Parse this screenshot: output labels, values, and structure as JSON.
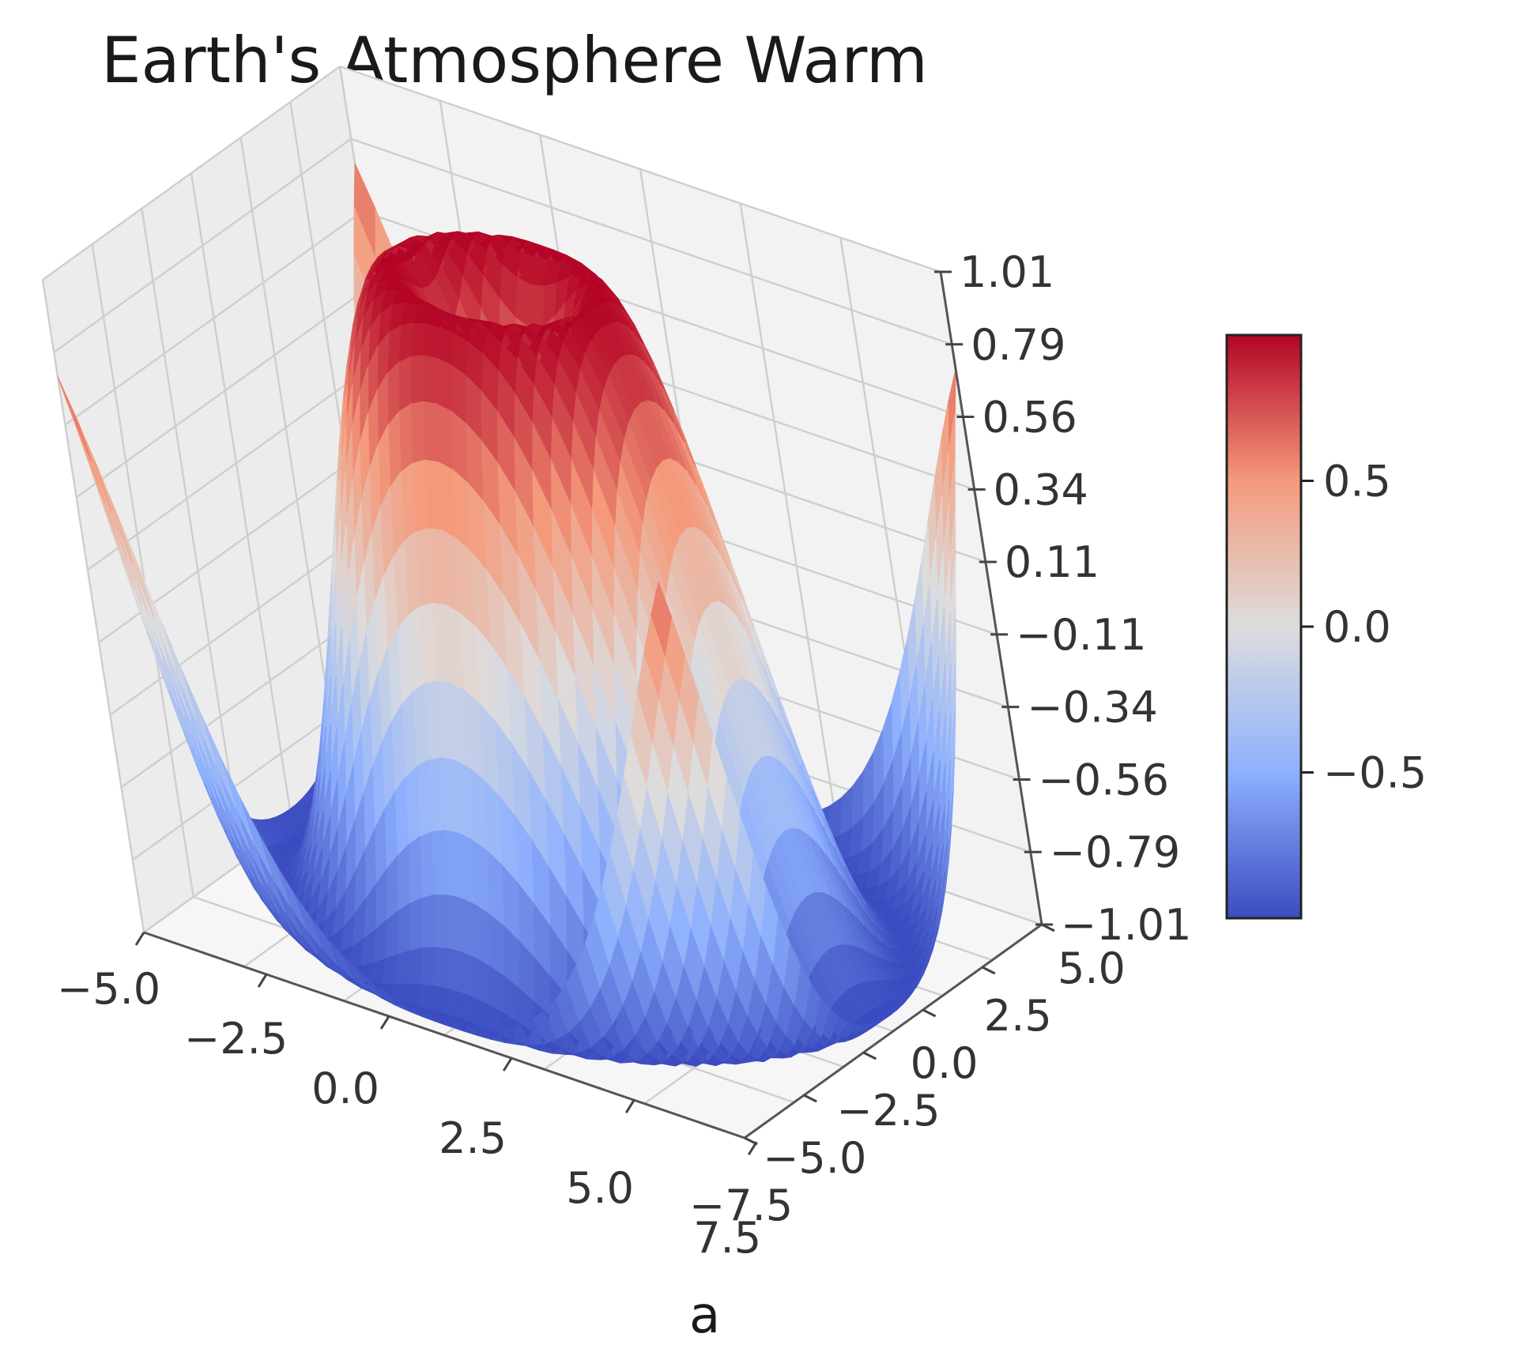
{
  "caption": "a",
  "chart_data": {
    "type": "surface3d",
    "title": "Earth's Atmosphere Warm",
    "colormap": "coolwarm",
    "colormap_stops": [
      "#3b4cc0",
      "#8db0fe",
      "#dddddd",
      "#f49a7b",
      "#b40426"
    ],
    "surface_function": "sin(sqrt(x^2 + y^2))",
    "x_ticks": [
      "−5.0",
      "−2.5",
      "0.0",
      "2.5",
      "5.0",
      "7.5"
    ],
    "y_ticks": [
      "5.0",
      "2.5",
      "0.0",
      "−2.5",
      "−5.0",
      "−7.5"
    ],
    "z_ticks": [
      "1.01",
      "0.79",
      "0.56",
      "0.34",
      "0.11",
      "−0.11",
      "−0.34",
      "−0.56",
      "−0.79",
      "−1.01"
    ],
    "xlim": [
      -5,
      5
    ],
    "ylim": [
      -5,
      5
    ],
    "zlim": [
      -1.01,
      1.01
    ],
    "colorbar": {
      "ticks": [
        "0.5",
        "0.0",
        "−0.5"
      ],
      "tick_values": [
        0.5,
        0.0,
        -0.5
      ],
      "range": [
        -1.0,
        1.0
      ]
    },
    "grid": true
  }
}
